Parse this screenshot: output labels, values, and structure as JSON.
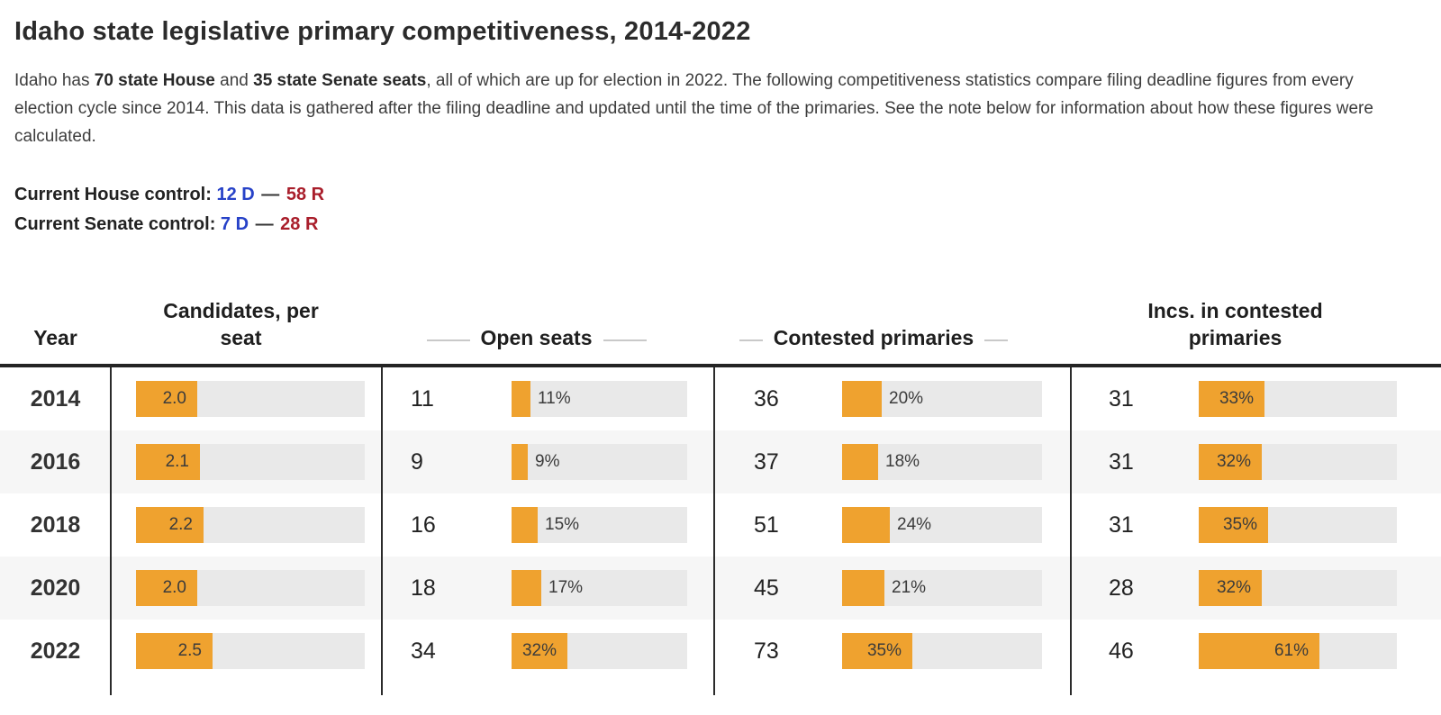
{
  "title": "Idaho state legislative primary competitiveness, 2014-2022",
  "intro_segments": [
    {
      "text": "Idaho has ",
      "bold": false
    },
    {
      "text": "70 state House",
      "bold": true
    },
    {
      "text": " and ",
      "bold": false
    },
    {
      "text": "35 state Senate seats",
      "bold": true
    },
    {
      "text": ", all of which are up for election in 2022. The following competitiveness statistics compare filing deadline figures from every election cycle since 2014. This data is gathered after the filing deadline and updated until the time of the primaries. See the note below for information about how these figures were calculated.",
      "bold": false
    }
  ],
  "control": {
    "house": {
      "label": "Current House control:",
      "dem": "12 D",
      "separator": "—",
      "rep": "58 R"
    },
    "senate": {
      "label": "Current Senate control:",
      "dem": "7 D",
      "separator": "—",
      "rep": "28 R"
    }
  },
  "colors": {
    "democrat": "#2742C8",
    "republican": "#A91E2B",
    "bar": "#EFA22F",
    "bar_track": "#E9E9E9",
    "row_stripe": "#F6F6F6"
  },
  "table": {
    "headers": [
      "Year",
      "Candidates, per seat",
      "Open seats",
      "Contested primaries",
      "Incs. in contested primaries"
    ],
    "candidates_axis_max": 7.5,
    "rows": [
      {
        "year": "2014",
        "candidates": 2.0,
        "candidates_label": "2.0",
        "cells": [
          {
            "count": 11,
            "pct": 11
          },
          {
            "count": 36,
            "pct": 20
          },
          {
            "count": 31,
            "pct": 33
          }
        ]
      },
      {
        "year": "2016",
        "candidates": 2.1,
        "candidates_label": "2.1",
        "cells": [
          {
            "count": 9,
            "pct": 9
          },
          {
            "count": 37,
            "pct": 18
          },
          {
            "count": 31,
            "pct": 32
          }
        ]
      },
      {
        "year": "2018",
        "candidates": 2.2,
        "candidates_label": "2.2",
        "cells": [
          {
            "count": 16,
            "pct": 15
          },
          {
            "count": 51,
            "pct": 24
          },
          {
            "count": 31,
            "pct": 35
          }
        ]
      },
      {
        "year": "2020",
        "candidates": 2.0,
        "candidates_label": "2.0",
        "cells": [
          {
            "count": 18,
            "pct": 17
          },
          {
            "count": 45,
            "pct": 21
          },
          {
            "count": 28,
            "pct": 32
          }
        ]
      },
      {
        "year": "2022",
        "candidates": 2.5,
        "candidates_label": "2.5",
        "cells": [
          {
            "count": 34,
            "pct": 32
          },
          {
            "count": 73,
            "pct": 35
          },
          {
            "count": 46,
            "pct": 61
          }
        ]
      }
    ]
  },
  "chart_data": {
    "type": "table",
    "title": "Idaho state legislative primary competitiveness, 2014-2022",
    "categories": [
      "2014",
      "2016",
      "2018",
      "2020",
      "2022"
    ],
    "series": [
      {
        "name": "Candidates, per seat",
        "values": [
          2.0,
          2.1,
          2.2,
          2.0,
          2.5
        ],
        "display": "bar",
        "axis_max": 7.5
      },
      {
        "name": "Open seats (count)",
        "values": [
          11,
          9,
          16,
          18,
          34
        ]
      },
      {
        "name": "Open seats (% of seats)",
        "values": [
          11,
          9,
          15,
          17,
          32
        ],
        "unit": "%",
        "display": "bar",
        "axis_max": 100
      },
      {
        "name": "Contested primaries (count)",
        "values": [
          36,
          37,
          51,
          45,
          73
        ]
      },
      {
        "name": "Contested primaries (%)",
        "values": [
          20,
          18,
          24,
          21,
          35
        ],
        "unit": "%",
        "display": "bar",
        "axis_max": 100
      },
      {
        "name": "Incumbents in contested primaries (count)",
        "values": [
          31,
          31,
          31,
          28,
          46
        ]
      },
      {
        "name": "Incumbents in contested primaries (%)",
        "values": [
          33,
          32,
          35,
          32,
          61
        ],
        "unit": "%",
        "display": "bar",
        "axis_max": 100
      }
    ],
    "bar_color": "#EFA22F",
    "legend_position": "none",
    "grid": false
  }
}
